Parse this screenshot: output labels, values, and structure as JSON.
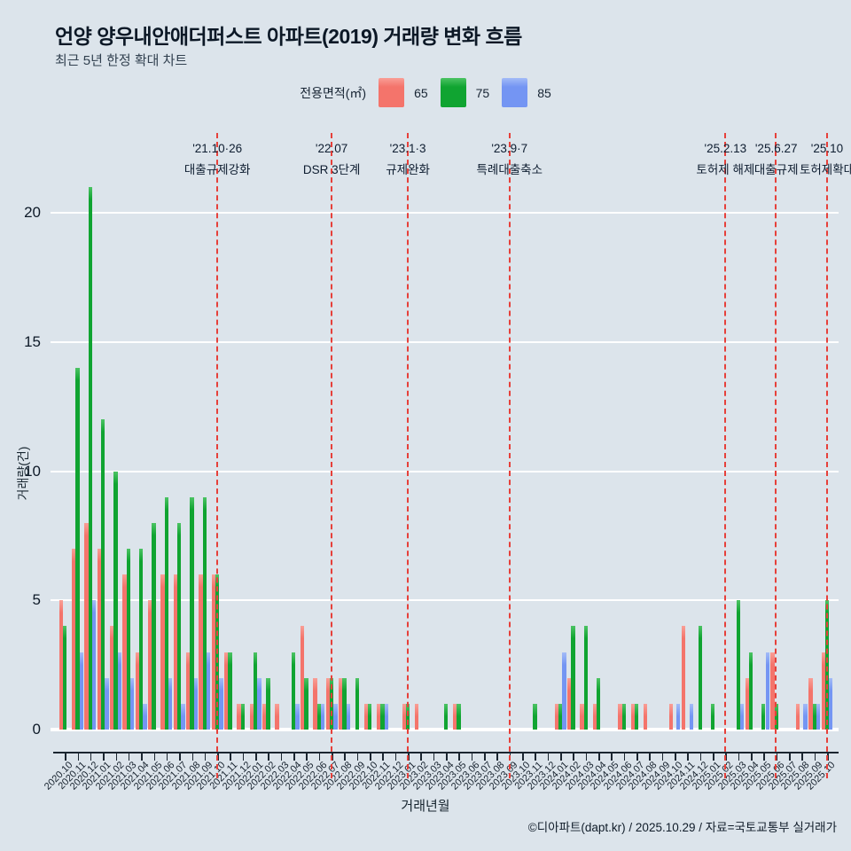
{
  "header": {
    "title": "언양 양우내안애더퍼스트 아파트(2019) 거래량 변화 흐름",
    "subtitle": "최근 5년 한정 확대 차트"
  },
  "legend": {
    "label": "전용면적(㎡)",
    "items": [
      {
        "label": "65",
        "color": "#f4746b"
      },
      {
        "label": "75",
        "color": "#10a431"
      },
      {
        "label": "85",
        "color": "#7495f3"
      }
    ]
  },
  "chart_data": {
    "type": "bar",
    "title": "언양 양우내안애더퍼스트 아파트(2019) 거래량 변화 흐름",
    "xlabel": "거래년월",
    "ylabel": "거래량(건)",
    "ylim": [
      0,
      21
    ],
    "yticks": [
      0,
      5,
      10,
      15,
      20
    ],
    "grid": "horizontal-white",
    "legend_position": "top-center",
    "categories": [
      "2020.10",
      "2020.11",
      "2020.12",
      "2021.01",
      "2021.02",
      "2021.03",
      "2021.04",
      "2021.05",
      "2021.06",
      "2021.07",
      "2021.08",
      "2021.09",
      "2021.10",
      "2021.11",
      "2021.12",
      "2022.01",
      "2022.02",
      "2022.03",
      "2022.04",
      "2022.05",
      "2022.06",
      "2022.07",
      "2022.08",
      "2022.09",
      "2022.10",
      "2022.11",
      "2022.12",
      "2023.01",
      "2023.02",
      "2023.03",
      "2023.04",
      "2023.05",
      "2023.06",
      "2023.07",
      "2023.08",
      "2023.09",
      "2023.10",
      "2023.11",
      "2023.12",
      "2024.01",
      "2024.02",
      "2024.03",
      "2024.04",
      "2024.05",
      "2024.06",
      "2024.07",
      "2024.08",
      "2024.09",
      "2024.10",
      "2024.11",
      "2024.12",
      "2025.01",
      "2025.02",
      "2025.03",
      "2025.04",
      "2025.05",
      "2025.06",
      "2025.07",
      "2025.08",
      "2025.09",
      "2025.10"
    ],
    "series": [
      {
        "name": "65",
        "color": "#f4746b",
        "color_top": "#f99e96",
        "values": [
          5,
          7,
          8,
          7,
          4,
          6,
          3,
          5,
          6,
          6,
          3,
          6,
          6,
          3,
          1,
          1,
          1,
          1,
          0,
          4,
          2,
          2,
          2,
          0,
          1,
          1,
          0,
          1,
          1,
          0,
          0,
          1,
          0,
          0,
          0,
          0,
          0,
          0,
          0,
          1,
          2,
          1,
          1,
          0,
          1,
          1,
          1,
          0,
          1,
          4,
          0,
          0,
          0,
          0,
          2,
          0,
          3,
          0,
          1,
          2,
          3
        ]
      },
      {
        "name": "75",
        "color": "#10a431",
        "color_top": "#4cc364",
        "values": [
          4,
          14,
          21,
          12,
          10,
          7,
          7,
          8,
          9,
          8,
          9,
          9,
          6,
          3,
          1,
          3,
          2,
          0,
          3,
          2,
          1,
          2,
          2,
          2,
          1,
          1,
          0,
          1,
          0,
          0,
          1,
          1,
          0,
          0,
          0,
          0,
          0,
          1,
          0,
          1,
          4,
          4,
          2,
          0,
          1,
          1,
          0,
          0,
          0,
          0,
          4,
          1,
          0,
          5,
          3,
          1,
          1,
          0,
          0,
          1,
          5
        ]
      },
      {
        "name": "85",
        "color": "#7495f3",
        "color_top": "#a3bbf7",
        "values": [
          0,
          3,
          5,
          2,
          3,
          2,
          1,
          0,
          2,
          1,
          2,
          3,
          2,
          0,
          0,
          2,
          0,
          0,
          1,
          0,
          1,
          1,
          1,
          0,
          0,
          1,
          0,
          0,
          0,
          0,
          0,
          0,
          0,
          0,
          0,
          0,
          0,
          0,
          0,
          3,
          0,
          0,
          0,
          0,
          0,
          0,
          0,
          0,
          1,
          1,
          0,
          0,
          0,
          1,
          0,
          3,
          0,
          0,
          1,
          1,
          2
        ]
      }
    ],
    "events": [
      {
        "month": "2021.10",
        "date": "'21.10·26",
        "label": "대출규제강화"
      },
      {
        "month": "2022.07",
        "date": "'22.07",
        "label": "DSR 3단계"
      },
      {
        "month": "2023.01",
        "date": "'23.1·3",
        "label": "규제완화"
      },
      {
        "month": "2023.09",
        "date": "'23.9·7",
        "label": "특례대출축소"
      },
      {
        "month": "2025.02",
        "date": "'25.2.13",
        "label": "토허제 해제"
      },
      {
        "month": "2025.06",
        "date": "'25.6.27",
        "label": "대출규제"
      },
      {
        "month": "2025.10",
        "date": "'25.10",
        "label": "토허제확대"
      }
    ],
    "event_line_color": "#e6403a"
  },
  "footer": {
    "credit": "©디아파트(dapt.kr) / 2025.10.29 / 자료=국토교통부 실거래가"
  }
}
